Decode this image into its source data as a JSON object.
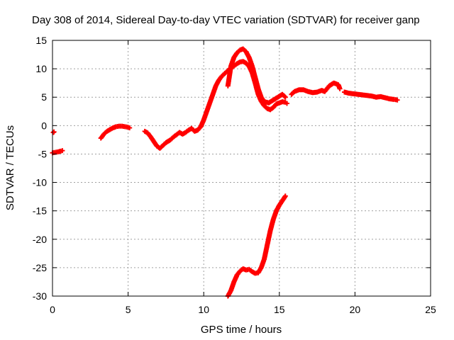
{
  "chart_data": {
    "type": "scatter",
    "title": "Day 308 of 2014, Sidereal Day-to-day VTEC variation (SDTVAR) for receiver ganp",
    "xlabel": "GPS time / hours",
    "ylabel": "SDTVAR / TECUs",
    "xlim": [
      0,
      25
    ],
    "ylim": [
      -30,
      15
    ],
    "x_ticks": [
      0,
      5,
      10,
      15,
      20,
      25
    ],
    "y_ticks": [
      -30,
      -25,
      -20,
      -15,
      -10,
      -5,
      0,
      5,
      10,
      15
    ],
    "grid": true,
    "marker": "plus",
    "series": [
      {
        "name": "SDTVAR",
        "color": "#ff0000",
        "segments": [
          [
            [
              0.05,
              -1.2
            ],
            [
              0.1,
              -1.1
            ]
          ],
          [
            [
              0.0,
              -4.8
            ],
            [
              0.2,
              -4.7
            ],
            [
              0.4,
              -4.6
            ],
            [
              0.55,
              -4.5
            ],
            [
              0.65,
              -4.4
            ]
          ],
          [
            [
              3.2,
              -2.2
            ],
            [
              3.4,
              -1.5
            ],
            [
              3.6,
              -1.0
            ],
            [
              3.8,
              -0.7
            ],
            [
              4.0,
              -0.4
            ],
            [
              4.2,
              -0.2
            ],
            [
              4.4,
              -0.1
            ],
            [
              4.6,
              -0.1
            ],
            [
              4.8,
              -0.2
            ],
            [
              5.0,
              -0.3
            ],
            [
              5.1,
              -0.4
            ]
          ],
          [
            [
              6.1,
              -1.0
            ],
            [
              6.3,
              -1.3
            ],
            [
              6.5,
              -2.0
            ],
            [
              6.7,
              -2.8
            ],
            [
              6.9,
              -3.6
            ],
            [
              7.1,
              -4.0
            ],
            [
              7.3,
              -3.5
            ],
            [
              7.5,
              -3.0
            ],
            [
              7.8,
              -2.5
            ],
            [
              8.0,
              -2.0
            ],
            [
              8.2,
              -1.6
            ],
            [
              8.4,
              -1.2
            ],
            [
              8.6,
              -1.5
            ],
            [
              8.8,
              -1.2
            ],
            [
              9.0,
              -0.8
            ],
            [
              9.2,
              -0.5
            ],
            [
              9.4,
              -1.0
            ],
            [
              9.6,
              -0.8
            ],
            [
              9.8,
              -0.2
            ],
            [
              10.0,
              1.0
            ],
            [
              10.2,
              2.5
            ],
            [
              10.4,
              4.0
            ],
            [
              10.6,
              5.5
            ],
            [
              10.8,
              7.0
            ],
            [
              11.0,
              8.0
            ],
            [
              11.2,
              8.7
            ],
            [
              11.4,
              9.2
            ],
            [
              11.6,
              9.7
            ],
            [
              11.8,
              10.1
            ],
            [
              12.0,
              10.5
            ],
            [
              12.2,
              10.9
            ],
            [
              12.4,
              11.2
            ],
            [
              12.6,
              11.3
            ],
            [
              12.8,
              11.0
            ],
            [
              13.0,
              10.4
            ],
            [
              13.2,
              9.3
            ],
            [
              13.4,
              7.5
            ],
            [
              13.6,
              5.5
            ],
            [
              13.8,
              4.3
            ],
            [
              14.0,
              3.5
            ],
            [
              14.2,
              3.0
            ],
            [
              14.4,
              2.8
            ],
            [
              14.6,
              3.2
            ],
            [
              14.8,
              3.8
            ],
            [
              15.0,
              4.0
            ],
            [
              15.2,
              4.2
            ],
            [
              15.4,
              4.1
            ],
            [
              15.5,
              3.9
            ]
          ],
          [
            [
              11.6,
              7.0
            ],
            [
              11.8,
              10.5
            ],
            [
              12.0,
              12.0
            ],
            [
              12.2,
              12.8
            ],
            [
              12.4,
              13.3
            ],
            [
              12.6,
              13.5
            ],
            [
              12.8,
              13.0
            ],
            [
              13.0,
              12.0
            ],
            [
              13.2,
              10.5
            ],
            [
              13.4,
              8.5
            ],
            [
              13.6,
              6.5
            ],
            [
              13.8,
              5.0
            ],
            [
              14.0,
              4.2
            ],
            [
              14.3,
              4.0
            ],
            [
              14.6,
              4.5
            ],
            [
              14.9,
              5.0
            ],
            [
              15.2,
              5.5
            ],
            [
              15.4,
              5.0
            ]
          ],
          [
            [
              15.8,
              5.5
            ],
            [
              16.0,
              6.0
            ],
            [
              16.3,
              6.3
            ],
            [
              16.6,
              6.3
            ],
            [
              16.9,
              6.0
            ],
            [
              17.2,
              5.8
            ],
            [
              17.5,
              5.9
            ],
            [
              17.8,
              6.2
            ],
            [
              18.0,
              6.0
            ],
            [
              18.3,
              7.0
            ],
            [
              18.6,
              7.5
            ],
            [
              18.9,
              7.2
            ],
            [
              19.0,
              6.5
            ]
          ],
          [
            [
              19.3,
              5.9
            ],
            [
              19.6,
              5.7
            ],
            [
              19.9,
              5.6
            ],
            [
              20.2,
              5.5
            ],
            [
              20.5,
              5.4
            ],
            [
              20.8,
              5.3
            ],
            [
              21.1,
              5.2
            ],
            [
              21.4,
              5.0
            ],
            [
              21.7,
              5.1
            ],
            [
              22.0,
              4.9
            ],
            [
              22.3,
              4.7
            ],
            [
              22.6,
              4.6
            ],
            [
              22.8,
              4.5
            ]
          ],
          [
            [
              11.6,
              -30.0
            ],
            [
              11.8,
              -29.0
            ],
            [
              12.0,
              -27.5
            ],
            [
              12.2,
              -26.3
            ],
            [
              12.4,
              -25.6
            ],
            [
              12.6,
              -25.2
            ],
            [
              12.8,
              -25.4
            ],
            [
              13.0,
              -25.3
            ],
            [
              13.2,
              -25.7
            ],
            [
              13.4,
              -26.0
            ],
            [
              13.6,
              -25.9
            ],
            [
              13.8,
              -25.0
            ],
            [
              14.0,
              -23.5
            ],
            [
              14.2,
              -21.0
            ],
            [
              14.4,
              -18.5
            ],
            [
              14.6,
              -16.5
            ],
            [
              14.8,
              -15.0
            ],
            [
              15.0,
              -14.0
            ],
            [
              15.2,
              -13.2
            ],
            [
              15.4,
              -12.4
            ]
          ]
        ]
      }
    ]
  }
}
